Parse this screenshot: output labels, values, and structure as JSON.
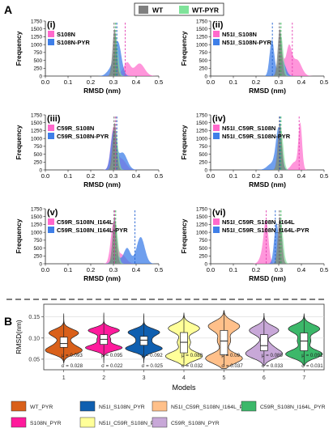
{
  "colors": {
    "wt": "#7f7f7f",
    "wt_pyr": "#7fe39a",
    "mut": "#ff69cc",
    "mut_pyr": "#3f7fe8",
    "wt_line": "#555555",
    "wt_pyr_line": "#2cb24e",
    "mut_line": "#e23cb0",
    "mut_pyr_line": "#1f5fd0",
    "violin": [
      "#d9601a",
      "#ff1a9c",
      "#0f5fb0",
      "#ffff99",
      "#ffc08a",
      "#c8a8d8",
      "#3cb86a"
    ]
  },
  "panel_A": {
    "label": "A",
    "legend": {
      "wt": "WT",
      "wt_pyr": "WT-PYR"
    },
    "xlabel": "RMSD (nm)",
    "ylabel": "Frequency",
    "xticks": [
      "0.0",
      "0.1",
      "0.2",
      "0.3",
      "0.4",
      "0.5"
    ],
    "yticks": [
      "0",
      "250",
      "500",
      "750",
      "1000",
      "1250",
      "1500",
      "1750"
    ],
    "chart_data": [
      {
        "type": "area",
        "id": "i",
        "label": "(i)",
        "mutant": "S108N",
        "mutant_pyr": "S108N-PYR",
        "xlim": [
          0,
          0.5
        ],
        "ylim": [
          0,
          1750
        ],
        "peaks": {
          "wt": [
            [
              0.305,
              1500,
              0.009
            ]
          ],
          "wt_pyr": [
            [
              0.31,
              1300,
              0.01
            ]
          ],
          "mut": [
            [
              0.36,
              420,
              0.015
            ],
            [
              0.415,
              400,
              0.022
            ],
            [
              0.31,
              120,
              0.02
            ]
          ],
          "mut_pyr": [
            [
              0.32,
              1050,
              0.015
            ],
            [
              0.29,
              220,
              0.018
            ]
          ]
        },
        "means": {
          "wt": 0.303,
          "wt_pyr": 0.31,
          "mut": 0.352,
          "mut_pyr": 0.315
        }
      },
      {
        "type": "area",
        "id": "ii",
        "label": "(ii)",
        "mutant": "N51I_S108N",
        "mutant_pyr": "N51I_S108N-PYR",
        "xlim": [
          0,
          0.5
        ],
        "ylim": [
          0,
          1750
        ],
        "peaks": {
          "wt": [
            [
              0.305,
              1500,
              0.009
            ]
          ],
          "wt_pyr": [
            [
              0.31,
              1300,
              0.01
            ]
          ],
          "mut": [
            [
              0.31,
              700,
              0.012
            ],
            [
              0.345,
              880,
              0.012
            ],
            [
              0.38,
              520,
              0.02
            ]
          ],
          "mut_pyr": [
            [
              0.27,
              1150,
              0.01
            ],
            [
              0.315,
              500,
              0.015
            ]
          ]
        },
        "means": {
          "wt": 0.303,
          "wt_pyr": 0.31,
          "mut": 0.36,
          "mut_pyr": 0.272
        }
      },
      {
        "type": "area",
        "id": "iii",
        "label": "(iii)",
        "mutant": "C59R_S108N",
        "mutant_pyr": "C59R_S108N-PYR",
        "xlim": [
          0,
          0.5
        ],
        "ylim": [
          0,
          1750
        ],
        "peaks": {
          "wt": [
            [
              0.305,
              1500,
              0.009
            ]
          ],
          "wt_pyr": [
            [
              0.31,
              1300,
              0.01
            ]
          ],
          "mut": [
            [
              0.3,
              1300,
              0.012
            ],
            [
              0.335,
              350,
              0.02
            ]
          ],
          "mut_pyr": [
            [
              0.3,
              1200,
              0.012
            ],
            [
              0.34,
              550,
              0.02
            ]
          ]
        },
        "means": {
          "wt": 0.303,
          "wt_pyr": 0.31,
          "mut": 0.31,
          "mut_pyr": 0.315
        }
      },
      {
        "type": "area",
        "id": "iv",
        "label": "(iv)",
        "mutant": "N51I_C59R_S108N",
        "mutant_pyr": "N51I_C59R_S108N-PYR",
        "xlim": [
          0,
          0.5
        ],
        "ylim": [
          0,
          1750
        ],
        "peaks": {
          "wt": [
            [
              0.305,
              1500,
              0.009
            ]
          ],
          "wt_pyr": [
            [
              0.31,
              1300,
              0.01
            ]
          ],
          "mut": [
            [
              0.395,
              1450,
              0.008
            ],
            [
              0.37,
              250,
              0.015
            ]
          ],
          "mut_pyr": [
            [
              0.3,
              1300,
              0.012
            ],
            [
              0.27,
              200,
              0.02
            ]
          ]
        },
        "means": {
          "wt": 0.303,
          "wt_pyr": 0.31,
          "mut": 0.39,
          "mut_pyr": 0.305
        }
      },
      {
        "type": "area",
        "id": "v",
        "label": "(v)",
        "mutant": "C59R_S108N_I164L",
        "mutant_pyr": "C59R_S108N_I164L-PYR",
        "xlim": [
          0,
          0.5
        ],
        "ylim": [
          0,
          1750
        ],
        "peaks": {
          "wt": [
            [
              0.305,
              1500,
              0.009
            ]
          ],
          "wt_pyr": [
            [
              0.31,
              1300,
              0.01
            ]
          ],
          "mut": [
            [
              0.3,
              1250,
              0.012
            ],
            [
              0.335,
              300,
              0.02
            ]
          ],
          "mut_pyr": [
            [
              0.42,
              850,
              0.018
            ],
            [
              0.36,
              500,
              0.015
            ],
            [
              0.31,
              300,
              0.015
            ]
          ]
        },
        "means": {
          "wt": 0.303,
          "wt_pyr": 0.31,
          "mut": 0.305,
          "mut_pyr": 0.395
        }
      },
      {
        "type": "area",
        "id": "vi",
        "label": "(vi)",
        "mutant": "N51I_C59R_S108N_I164L",
        "mutant_pyr": "N51I_C59R_S108N_I164L-PYR",
        "xlim": [
          0,
          0.5
        ],
        "ylim": [
          0,
          1750
        ],
        "peaks": {
          "wt": [
            [
              0.305,
              1500,
              0.009
            ]
          ],
          "wt_pyr": [
            [
              0.31,
              1300,
              0.01
            ]
          ],
          "mut": [
            [
              0.245,
              1050,
              0.01
            ],
            [
              0.235,
              400,
              0.015
            ]
          ],
          "mut_pyr": [
            [
              0.29,
              1300,
              0.01
            ]
          ]
        },
        "means": {
          "wt": 0.303,
          "wt_pyr": 0.31,
          "mut": 0.245,
          "mut_pyr": 0.285
        }
      }
    ]
  },
  "panel_B": {
    "label": "B",
    "chart_data": {
      "type": "violin",
      "xlabel": "Models",
      "ylabel": "RMSD(nm)",
      "categories": [
        "1",
        "2",
        "3",
        "4",
        "5",
        "6",
        "7"
      ],
      "yticks": [
        "0.05",
        "0.10",
        "0.15"
      ],
      "ylim": [
        0.025,
        0.18
      ],
      "series": [
        {
          "name": "WT_PYR",
          "mu": "μ = 0.093",
          "sigma": "σ = 0.028",
          "mean": 0.093,
          "sd": 0.028,
          "min": 0.04,
          "max": 0.158,
          "q1": 0.078,
          "median": 0.087,
          "q3": 0.102
        },
        {
          "name": "S108N_PYR",
          "mu": "μ = 0.095",
          "sigma": "σ = 0.022",
          "mean": 0.095,
          "sd": 0.022,
          "min": 0.04,
          "max": 0.16,
          "q1": 0.085,
          "median": 0.097,
          "q3": 0.108
        },
        {
          "name": "N51I_S108N_PYR",
          "mu": "μ = 0.092",
          "sigma": "σ = 0.025",
          "mean": 0.092,
          "sd": 0.025,
          "min": 0.04,
          "max": 0.158,
          "q1": 0.083,
          "median": 0.095,
          "q3": 0.104
        },
        {
          "name": "N51I_C59R_S108N_PYR",
          "mu": "μ = 0.088",
          "sigma": "σ = 0.032",
          "mean": 0.088,
          "sd": 0.032,
          "min": 0.035,
          "max": 0.16,
          "q1": 0.065,
          "median": 0.09,
          "q3": 0.113
        },
        {
          "name": "N51I_C59R_S108N_I164L_PYR",
          "mu": "μ = 0.09",
          "sigma": "σ = 0.037",
          "mean": 0.09,
          "sd": 0.037,
          "min": 0.028,
          "max": 0.165,
          "q1": 0.06,
          "median": 0.093,
          "q3": 0.118
        },
        {
          "name": "C59R_S108N_PYR",
          "mu": "μ = 0.089",
          "sigma": "σ = 0.033",
          "mean": 0.089,
          "sd": 0.033,
          "min": 0.035,
          "max": 0.158,
          "q1": 0.07,
          "median": 0.082,
          "q3": 0.108
        },
        {
          "name": "C59R_S108N_I164L_PYR",
          "mu": "μ = 0.091",
          "sigma": "σ = 0.031",
          "mean": 0.091,
          "sd": 0.031,
          "min": 0.035,
          "max": 0.158,
          "q1": 0.07,
          "median": 0.093,
          "q3": 0.112
        }
      ],
      "legend_order": [
        "WT_PYR",
        "N51I_S108N_PYR",
        "N51I_C59R_S108N_I164L_PYR",
        "C59R_S108N_I164L_PYR",
        "S108N_PYR",
        "N51I_C59R_S108N_PYR",
        "C59R_S108N_PYR"
      ]
    }
  }
}
